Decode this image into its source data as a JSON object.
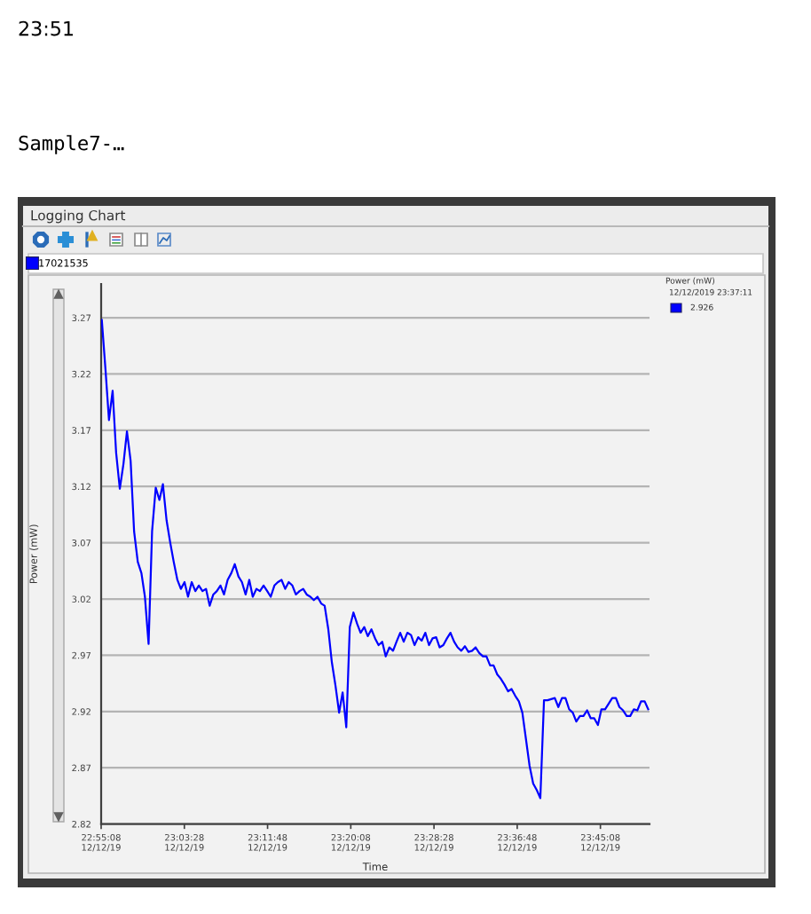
{
  "chart_data": {
    "type": "line",
    "title": "Logging Chart",
    "xlabel": "Time",
    "ylabel": "Power (mW)",
    "annotations": [
      "23:51",
      "Sample7-…",
      "Power (mW)",
      "12/12/2019 23:37:11",
      "2.926"
    ],
    "x": [
      "2019-12-12T22:55:12",
      "2019-12-12T22:55:34",
      "2019-12-12T22:55:55",
      "2019-12-12T22:56:17",
      "2019-12-12T22:56:38",
      "2019-12-12T22:57:00",
      "2019-12-12T22:57:22",
      "2019-12-12T22:57:43",
      "2019-12-12T22:58:05",
      "2019-12-12T22:58:26",
      "2019-12-12T22:58:48",
      "2019-12-12T22:59:10",
      "2019-12-12T22:59:31",
      "2019-12-12T22:59:53",
      "2019-12-12T23:00:14",
      "2019-12-12T23:00:36",
      "2019-12-12T23:00:58",
      "2019-12-12T23:01:19",
      "2019-12-12T23:01:41",
      "2019-12-12T23:02:02",
      "2019-12-12T23:02:24",
      "2019-12-12T23:02:46",
      "2019-12-12T23:03:07",
      "2019-12-12T23:03:29",
      "2019-12-12T23:03:50",
      "2019-12-12T23:04:12",
      "2019-12-12T23:04:34",
      "2019-12-12T23:04:55",
      "2019-12-12T23:05:17",
      "2019-12-12T23:05:38",
      "2019-12-12T23:06:00",
      "2019-12-12T23:06:22",
      "2019-12-12T23:06:43",
      "2019-12-12T23:07:05",
      "2019-12-12T23:07:26",
      "2019-12-12T23:07:48",
      "2019-12-12T23:08:10",
      "2019-12-12T23:08:31",
      "2019-12-12T23:08:53",
      "2019-12-12T23:09:14",
      "2019-12-12T23:09:36",
      "2019-12-12T23:09:58",
      "2019-12-12T23:10:19",
      "2019-12-12T23:10:41",
      "2019-12-12T23:11:02",
      "2019-12-12T23:11:24",
      "2019-12-12T23:11:46",
      "2019-12-12T23:12:07",
      "2019-12-12T23:12:29",
      "2019-12-12T23:12:50",
      "2019-12-12T23:13:12",
      "2019-12-12T23:13:34",
      "2019-12-12T23:13:55",
      "2019-12-12T23:14:17",
      "2019-12-12T23:14:38",
      "2019-12-12T23:15:00",
      "2019-12-12T23:15:22",
      "2019-12-12T23:15:43",
      "2019-12-12T23:16:05",
      "2019-12-12T23:16:26",
      "2019-12-12T23:16:48",
      "2019-12-12T23:17:10",
      "2019-12-12T23:17:31",
      "2019-12-12T23:17:53",
      "2019-12-12T23:18:14",
      "2019-12-12T23:18:36",
      "2019-12-12T23:18:58",
      "2019-12-12T23:19:19",
      "2019-12-12T23:19:41",
      "2019-12-12T23:20:02",
      "2019-12-12T23:20:24",
      "2019-12-12T23:20:46",
      "2019-12-12T23:21:07",
      "2019-12-12T23:21:29",
      "2019-12-12T23:21:50",
      "2019-12-12T23:22:12",
      "2019-12-12T23:22:34",
      "2019-12-12T23:22:55",
      "2019-12-12T23:23:17",
      "2019-12-12T23:23:38",
      "2019-12-12T23:24:00",
      "2019-12-12T23:24:22",
      "2019-12-12T23:24:43",
      "2019-12-12T23:25:05",
      "2019-12-12T23:25:26",
      "2019-12-12T23:25:48",
      "2019-12-12T23:26:10",
      "2019-12-12T23:26:31",
      "2019-12-12T23:26:53",
      "2019-12-12T23:27:14",
      "2019-12-12T23:27:36",
      "2019-12-12T23:27:58",
      "2019-12-12T23:28:19",
      "2019-12-12T23:28:41",
      "2019-12-12T23:29:02",
      "2019-12-12T23:29:24",
      "2019-12-12T23:29:46",
      "2019-12-12T23:30:07",
      "2019-12-12T23:30:29",
      "2019-12-12T23:30:50",
      "2019-12-12T23:31:12",
      "2019-12-12T23:31:34",
      "2019-12-12T23:31:55",
      "2019-12-12T23:32:17",
      "2019-12-12T23:32:38",
      "2019-12-12T23:33:00",
      "2019-12-12T23:33:22",
      "2019-12-12T23:33:43",
      "2019-12-12T23:34:05",
      "2019-12-12T23:34:26",
      "2019-12-12T23:34:48",
      "2019-12-12T23:35:10",
      "2019-12-12T23:35:31",
      "2019-12-12T23:35:53",
      "2019-12-12T23:36:14",
      "2019-12-12T23:36:36",
      "2019-12-12T23:36:58",
      "2019-12-12T23:37:19",
      "2019-12-12T23:37:41",
      "2019-12-12T23:38:02",
      "2019-12-12T23:38:24",
      "2019-12-12T23:38:46",
      "2019-12-12T23:39:07",
      "2019-12-12T23:39:29",
      "2019-12-12T23:39:50",
      "2019-12-12T23:40:12",
      "2019-12-12T23:40:34",
      "2019-12-12T23:40:55",
      "2019-12-12T23:41:17",
      "2019-12-12T23:41:38",
      "2019-12-12T23:42:00",
      "2019-12-12T23:42:22",
      "2019-12-12T23:42:43",
      "2019-12-12T23:43:05",
      "2019-12-12T23:43:26",
      "2019-12-12T23:43:48",
      "2019-12-12T23:44:10",
      "2019-12-12T23:44:31",
      "2019-12-12T23:44:53",
      "2019-12-12T23:45:14",
      "2019-12-12T23:45:36",
      "2019-12-12T23:45:58",
      "2019-12-12T23:46:19",
      "2019-12-12T23:46:41",
      "2019-12-12T23:47:02",
      "2019-12-12T23:47:24",
      "2019-12-12T23:47:46",
      "2019-12-12T23:48:07",
      "2019-12-12T23:48:29",
      "2019-12-12T23:48:50",
      "2019-12-12T23:49:12",
      "2019-12-12T23:49:34",
      "2019-12-12T23:49:55"
    ],
    "series": [
      {
        "name": "17021535",
        "color": "#0000ff",
        "values": [
          3.268,
          3.224,
          3.179,
          3.205,
          3.15,
          3.118,
          3.14,
          3.169,
          3.143,
          3.08,
          3.053,
          3.043,
          3.022,
          2.98,
          3.08,
          3.119,
          3.108,
          3.122,
          3.09,
          3.071,
          3.053,
          3.037,
          3.029,
          3.035,
          3.022,
          3.035,
          3.027,
          3.032,
          3.027,
          3.029,
          3.014,
          3.024,
          3.027,
          3.032,
          3.024,
          3.037,
          3.043,
          3.051,
          3.04,
          3.035,
          3.024,
          3.037,
          3.022,
          3.029,
          3.027,
          3.032,
          3.027,
          3.022,
          3.032,
          3.035,
          3.037,
          3.029,
          3.035,
          3.032,
          3.024,
          3.027,
          3.029,
          3.024,
          3.022,
          3.019,
          3.022,
          3.016,
          3.014,
          2.993,
          2.964,
          2.943,
          2.919,
          2.937,
          2.906,
          2.995,
          3.008,
          2.998,
          2.99,
          2.995,
          2.987,
          2.993,
          2.985,
          2.979,
          2.982,
          2.969,
          2.977,
          2.974,
          2.982,
          2.99,
          2.982,
          2.99,
          2.988,
          2.979,
          2.986,
          2.983,
          2.99,
          2.979,
          2.985,
          2.986,
          2.977,
          2.979,
          2.985,
          2.99,
          2.982,
          2.977,
          2.974,
          2.978,
          2.973,
          2.974,
          2.977,
          2.972,
          2.969,
          2.969,
          2.961,
          2.961,
          2.953,
          2.949,
          2.944,
          2.938,
          2.94,
          2.934,
          2.929,
          2.919,
          2.895,
          2.872,
          2.856,
          2.85,
          2.843,
          2.93,
          2.93,
          2.931,
          2.932,
          2.924,
          2.932,
          2.932,
          2.922,
          2.919,
          2.911,
          2.916,
          2.916,
          2.921,
          2.914,
          2.914,
          2.908,
          2.922,
          2.922,
          2.927,
          2.932,
          2.932,
          2.924,
          2.921,
          2.916,
          2.916,
          2.922,
          2.921,
          2.929,
          2.929,
          2.922
        ]
      }
    ],
    "xlim": [
      "2019-12-12T22:55:08",
      "2019-12-12T23:50:03"
    ],
    "xticks": [
      {
        "value": "2019-12-12T22:55:08",
        "label": "22:55:08\n12/12/19"
      },
      {
        "value": "2019-12-12T23:03:28",
        "label": "23:03:28\n12/12/19"
      },
      {
        "value": "2019-12-12T23:11:48",
        "label": "23:11:48\n12/12/19"
      },
      {
        "value": "2019-12-12T23:20:08",
        "label": "23:20:08\n12/12/19"
      },
      {
        "value": "2019-12-12T23:28:28",
        "label": "23:28:28\n12/12/19"
      },
      {
        "value": "2019-12-12T23:36:48",
        "label": "23:36:48\n12/12/19"
      },
      {
        "value": "2019-12-12T23:45:08",
        "label": "23:45:08\n12/12/19"
      }
    ],
    "ylim": [
      2.82,
      3.3
    ],
    "yticks": [
      2.82,
      2.87,
      2.92,
      2.97,
      3.02,
      3.07,
      3.12,
      3.17,
      3.22,
      3.27
    ],
    "grid": "y",
    "legend": "top",
    "marker": "none",
    "line_style": "solid"
  }
}
